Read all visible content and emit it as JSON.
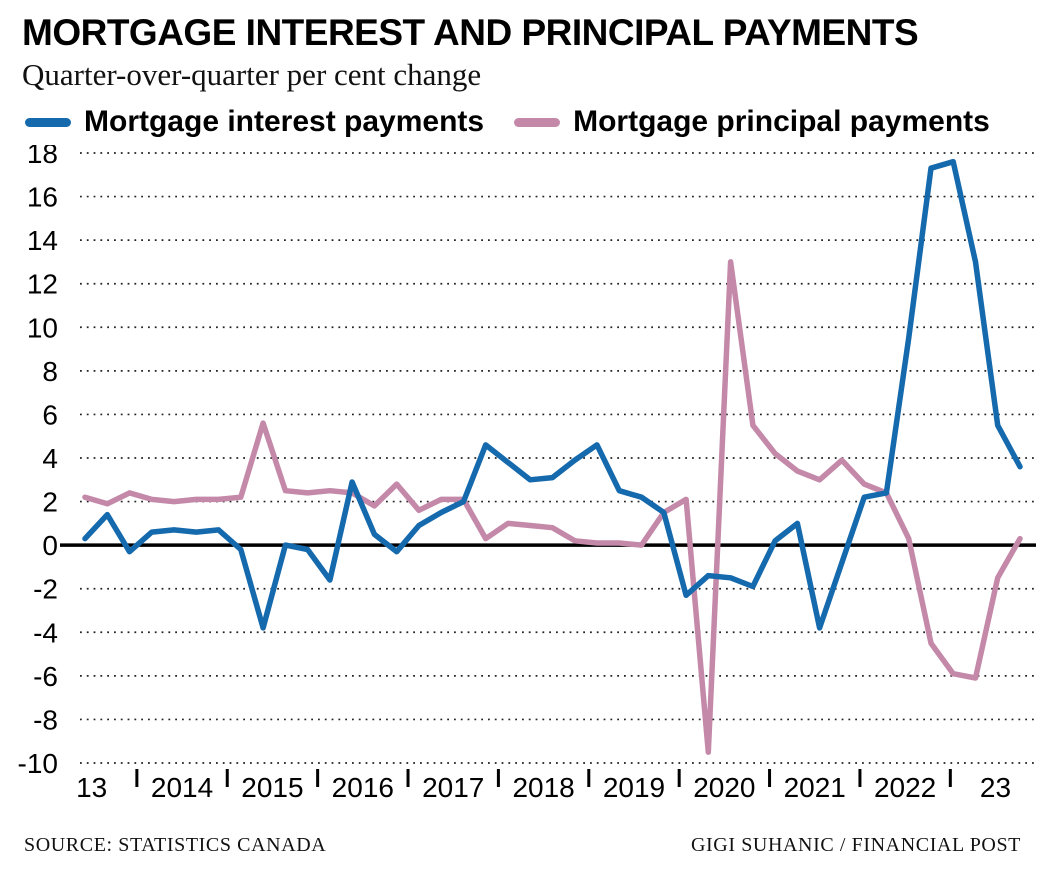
{
  "header": {
    "title": "MORTGAGE INTEREST AND PRINCIPAL PAYMENTS",
    "subtitle": "Quarter-over-quarter per cent change"
  },
  "legend": [
    {
      "label": "Mortgage interest payments",
      "color": "#1569ad"
    },
    {
      "label": "Mortgage principal payments",
      "color": "#c489a9"
    }
  ],
  "footer": {
    "source": "SOURCE: STATISTICS CANADA",
    "credit": "GIGI SUHANIC / FINANCIAL POST"
  },
  "chart_data": {
    "type": "line",
    "title": "MORTGAGE INTEREST AND PRINCIPAL PAYMENTS",
    "subtitle": "Quarter-over-quarter per cent change",
    "ylabel": "Quarter-over-quarter per cent change",
    "ylim": [
      -10,
      18
    ],
    "y_tick_step": 2,
    "y_ticks": [
      18,
      16,
      14,
      12,
      10,
      8,
      6,
      4,
      2,
      0,
      -2,
      -4,
      -6,
      -8,
      -10
    ],
    "grid": "dotted horizontal gridlines, solid zero line",
    "legend_position": "top",
    "x_freq": "quarterly",
    "x_start": "2013 Q1",
    "x_end": "2023 Q3",
    "x_tick_labels": [
      "13",
      "2014",
      "2015",
      "2016",
      "2017",
      "2018",
      "2019",
      "2020",
      "2021",
      "2022",
      "23"
    ],
    "series": [
      {
        "id": "interest",
        "name": "Mortgage interest payments",
        "color": "#1569ad",
        "values": [
          0.3,
          1.4,
          -0.3,
          0.6,
          0.7,
          0.6,
          0.7,
          -0.2,
          -3.8,
          0.0,
          -0.2,
          -1.6,
          2.9,
          0.5,
          -0.3,
          0.9,
          1.5,
          2.0,
          4.6,
          3.8,
          3.0,
          3.1,
          3.9,
          4.6,
          2.5,
          2.2,
          1.5,
          -2.3,
          -1.4,
          -1.5,
          -1.9,
          0.2,
          1.0,
          -3.8,
          -0.8,
          2.2,
          2.4,
          9.5,
          17.3,
          17.6,
          13.0,
          5.5,
          3.6
        ]
      },
      {
        "id": "principal",
        "name": "Mortgage principal payments",
        "color": "#c489a9",
        "values": [
          2.2,
          1.9,
          2.4,
          2.1,
          2.0,
          2.1,
          2.1,
          2.2,
          5.6,
          2.5,
          2.4,
          2.5,
          2.4,
          1.8,
          2.8,
          1.6,
          2.1,
          2.1,
          0.3,
          1.0,
          0.9,
          0.8,
          0.2,
          0.1,
          0.1,
          0.0,
          1.5,
          2.1,
          -9.5,
          13.0,
          5.5,
          4.2,
          3.4,
          3.0,
          3.9,
          2.8,
          2.4,
          0.3,
          -4.5,
          -5.9,
          -6.1,
          -1.5,
          0.3
        ]
      }
    ]
  }
}
